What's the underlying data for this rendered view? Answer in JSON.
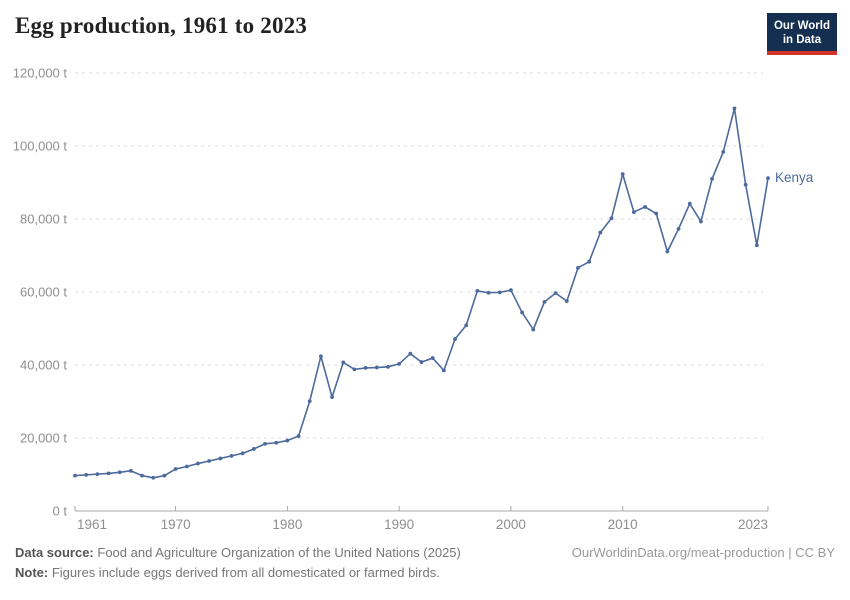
{
  "header": {
    "title": "Egg production, 1961 to 2023"
  },
  "logo": {
    "line1": "Our World",
    "line2": "in Data",
    "bg_color": "#142F4F",
    "bar_color": "#D0342A"
  },
  "chart_data": {
    "type": "line",
    "title": "Egg production, 1961 to 2023",
    "unit": "t",
    "grid": "horizontal-dashed",
    "legend_position": "end-of-line-label",
    "xlim": [
      1961,
      2023
    ],
    "ylim": [
      0,
      120000
    ],
    "xticks": [
      1961,
      1970,
      1980,
      1990,
      2000,
      2010,
      2023
    ],
    "yticks": [
      {
        "value": 0,
        "label": "0 t"
      },
      {
        "value": 20000,
        "label": "20,000 t"
      },
      {
        "value": 40000,
        "label": "40,000 t"
      },
      {
        "value": 60000,
        "label": "60,000 t"
      },
      {
        "value": 80000,
        "label": "80,000 t"
      },
      {
        "value": 100000,
        "label": "100,000 t"
      },
      {
        "value": 120000,
        "label": "120,000 t"
      }
    ],
    "x": [
      1961,
      1962,
      1963,
      1964,
      1965,
      1966,
      1967,
      1968,
      1969,
      1970,
      1971,
      1972,
      1973,
      1974,
      1975,
      1976,
      1977,
      1978,
      1979,
      1980,
      1981,
      1982,
      1983,
      1984,
      1985,
      1986,
      1987,
      1988,
      1989,
      1990,
      1991,
      1992,
      1993,
      1994,
      1995,
      1996,
      1997,
      1998,
      1999,
      2000,
      2001,
      2002,
      2003,
      2004,
      2005,
      2006,
      2007,
      2008,
      2009,
      2010,
      2011,
      2012,
      2013,
      2014,
      2015,
      2016,
      2017,
      2018,
      2019,
      2020,
      2021,
      2022,
      2023
    ],
    "series": [
      {
        "name": "Kenya",
        "color": "#4C6A9C",
        "values": [
          9700,
          9900,
          10100,
          10300,
          10600,
          11000,
          9700,
          9100,
          9700,
          11500,
          12200,
          13000,
          13700,
          14400,
          15100,
          15800,
          17000,
          18400,
          18700,
          19300,
          20500,
          30100,
          42400,
          31200,
          40700,
          38800,
          39200,
          39300,
          39500,
          40300,
          43100,
          40800,
          41900,
          38500,
          47100,
          50900,
          60300,
          59800,
          59900,
          60500,
          54400,
          49700,
          57300,
          59700,
          57500,
          66600,
          68300,
          76300,
          80200,
          92300,
          81900,
          83300,
          81500,
          71100,
          77300,
          84200,
          79300,
          91000,
          98400,
          110300,
          89400,
          72800,
          91200
        ]
      }
    ],
    "colors": {
      "gridline": "#dedede",
      "axis": "#a8a8a8",
      "tick_label": "#8f8f8f"
    }
  },
  "footer": {
    "source_label": "Data source:",
    "source_text": "Food and Agriculture Organization of the United Nations (2025)",
    "note_label": "Note:",
    "note_text": "Figures include eggs derived from all domesticated or farmed birds.",
    "link": "OurWorldinData.org/meat-production | CC BY"
  }
}
